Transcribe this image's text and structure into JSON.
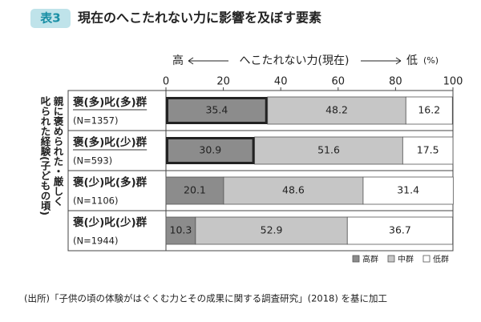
{
  "header": {
    "label": "表3",
    "title": "現在のへこたれない力に影響を及ぼす要素"
  },
  "chart_data": {
    "type": "stacked-barh",
    "x_axis_label": {
      "high": "高",
      "title": "へこたれない力(現在)",
      "low": "低",
      "unit": "(%)"
    },
    "y_axis_label": [
      "親に褒められた・厳しく",
      "叱られた経験(子どもの頃)"
    ],
    "categories": [
      "褒(多)叱(多)群",
      "褒(多)叱(少)群",
      "褒(少)叱(多)群",
      "褒(少)叱(少)群"
    ],
    "sample_sizes": [
      "(N=1357)",
      "(N=593)",
      "(N=1106)",
      "(N=1944)"
    ],
    "highlight": [
      true,
      true,
      false,
      false
    ],
    "series": [
      {
        "name": "高群",
        "color": "#8c8c8c",
        "values": [
          35.4,
          30.9,
          20.1,
          10.3
        ]
      },
      {
        "name": "中群",
        "color": "#c6c6c6",
        "values": [
          48.2,
          51.6,
          48.6,
          52.9
        ]
      },
      {
        "name": "低群",
        "color": "#ffffff",
        "values": [
          16.2,
          17.5,
          31.4,
          36.7
        ]
      }
    ],
    "xlim": [
      0,
      100
    ],
    "xticks": [
      0,
      20,
      40,
      60,
      80,
      100
    ],
    "legend": "bottom-right"
  },
  "footer": {
    "source": "(出所)「子供の頃の体験がはぐくむ力とその成果に関する調査研究」(2018) を基に加工"
  }
}
